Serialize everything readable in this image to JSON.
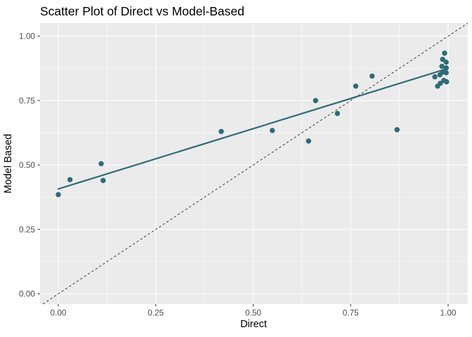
{
  "chart_data": {
    "type": "scatter",
    "title": "Scatter Plot of Direct vs Model-Based",
    "xlabel": "Direct",
    "ylabel": "Model Based",
    "xlim": [
      -0.04685,
      1.05045
    ],
    "ylim": [
      -0.03951,
      1.05041
    ],
    "xticks": [
      0,
      0.25,
      0.5,
      0.75,
      1
    ],
    "xtick_labels": [
      "0.00",
      "0.25",
      "0.50",
      "0.75",
      "1.00"
    ],
    "yticks": [
      0,
      0.25,
      0.5,
      0.75,
      1
    ],
    "ytick_labels": [
      "0.00",
      "0.25",
      "0.50",
      "0.75",
      "1.00"
    ],
    "minor_breaks_x": [
      0.125,
      0.375,
      0.625,
      0.875
    ],
    "minor_breaks_y": [
      0.125,
      0.375,
      0.625,
      0.875
    ],
    "grid": "major and minor white gridlines on gray panel",
    "legend": "none",
    "points": [
      [
        0.0,
        0.385
      ],
      [
        0.03,
        0.443
      ],
      [
        0.11,
        0.505
      ],
      [
        0.115,
        0.44
      ],
      [
        0.418,
        0.63
      ],
      [
        0.549,
        0.634
      ],
      [
        0.642,
        0.593
      ],
      [
        0.66,
        0.75
      ],
      [
        0.716,
        0.7
      ],
      [
        0.763,
        0.806
      ],
      [
        0.805,
        0.845
      ],
      [
        0.869,
        0.637
      ],
      [
        0.966,
        0.842
      ],
      [
        0.973,
        0.806
      ],
      [
        0.98,
        0.817
      ],
      [
        0.989,
        0.828
      ],
      [
        0.996,
        0.823
      ],
      [
        0.979,
        0.85
      ],
      [
        0.986,
        0.861
      ],
      [
        0.995,
        0.858
      ],
      [
        0.984,
        0.883
      ],
      [
        0.995,
        0.877
      ],
      [
        0.986,
        0.91
      ],
      [
        0.995,
        0.899
      ],
      [
        0.991,
        0.934
      ]
    ],
    "regression_line": {
      "x1": 0,
      "y1": 0.407,
      "x2": 1,
      "y2": 0.875,
      "linetype": "solid"
    },
    "identity_line": {
      "slope": 1,
      "intercept": 0,
      "linetype": "dashed"
    },
    "theme": {
      "panel_bg": "#ebebeb",
      "grid_color": "#ffffff",
      "point_color": "#2d6b78",
      "smooth_color": "#2d6b78",
      "identity_color": "#262626",
      "tick_mark_color": "#333333",
      "tick_text_color": "#4d4d4d",
      "title_color": "#000000",
      "axis_title_color": "#000000"
    }
  }
}
